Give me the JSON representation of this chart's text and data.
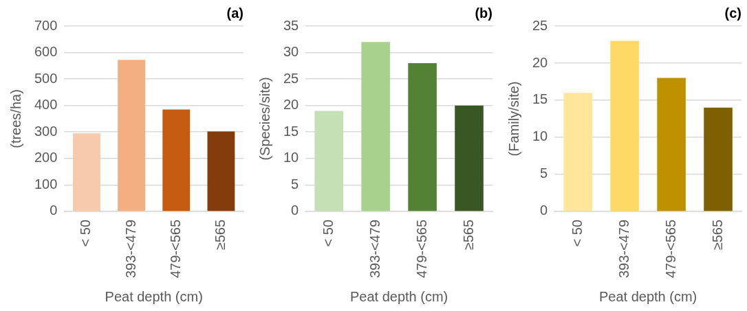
{
  "chart_data": [
    {
      "type": "bar",
      "title": "(a)",
      "xlabel": "Peat depth (cm)",
      "ylabel": "(trees/ha)",
      "categories": [
        "< 50",
        "393-<479",
        "479-<565",
        "≥565"
      ],
      "values": [
        295,
        572,
        385,
        302
      ],
      "colors": [
        "#f6caab",
        "#f3ae81",
        "#c55a11",
        "#843c0c"
      ],
      "ylim": [
        0,
        700
      ],
      "yticks": [
        0,
        100,
        200,
        300,
        400,
        500,
        600,
        700
      ],
      "grid": "y"
    },
    {
      "type": "bar",
      "title": "(b)",
      "xlabel": "Peat depth (cm)",
      "ylabel": "(Species/site)",
      "categories": [
        "< 50",
        "393-<479",
        "479-<565",
        "≥565"
      ],
      "values": [
        19,
        32,
        28,
        20
      ],
      "colors": [
        "#c5e0b4",
        "#a9d18e",
        "#548235",
        "#385723"
      ],
      "ylim": [
        0,
        35
      ],
      "yticks": [
        0,
        5,
        10,
        15,
        20,
        25,
        30,
        35
      ],
      "grid": "y"
    },
    {
      "type": "bar",
      "title": "(c)",
      "xlabel": "Peat depth (cm)",
      "ylabel": "(Family/site)",
      "categories": [
        "< 50",
        "393-<479",
        "479-<565",
        "≥565"
      ],
      "values": [
        16,
        23,
        18,
        14
      ],
      "colors": [
        "#ffe699",
        "#ffd966",
        "#bf9000",
        "#7f6000"
      ],
      "ylim": [
        0,
        25
      ],
      "yticks": [
        0,
        5,
        10,
        15,
        20,
        25
      ],
      "grid": "y"
    }
  ]
}
